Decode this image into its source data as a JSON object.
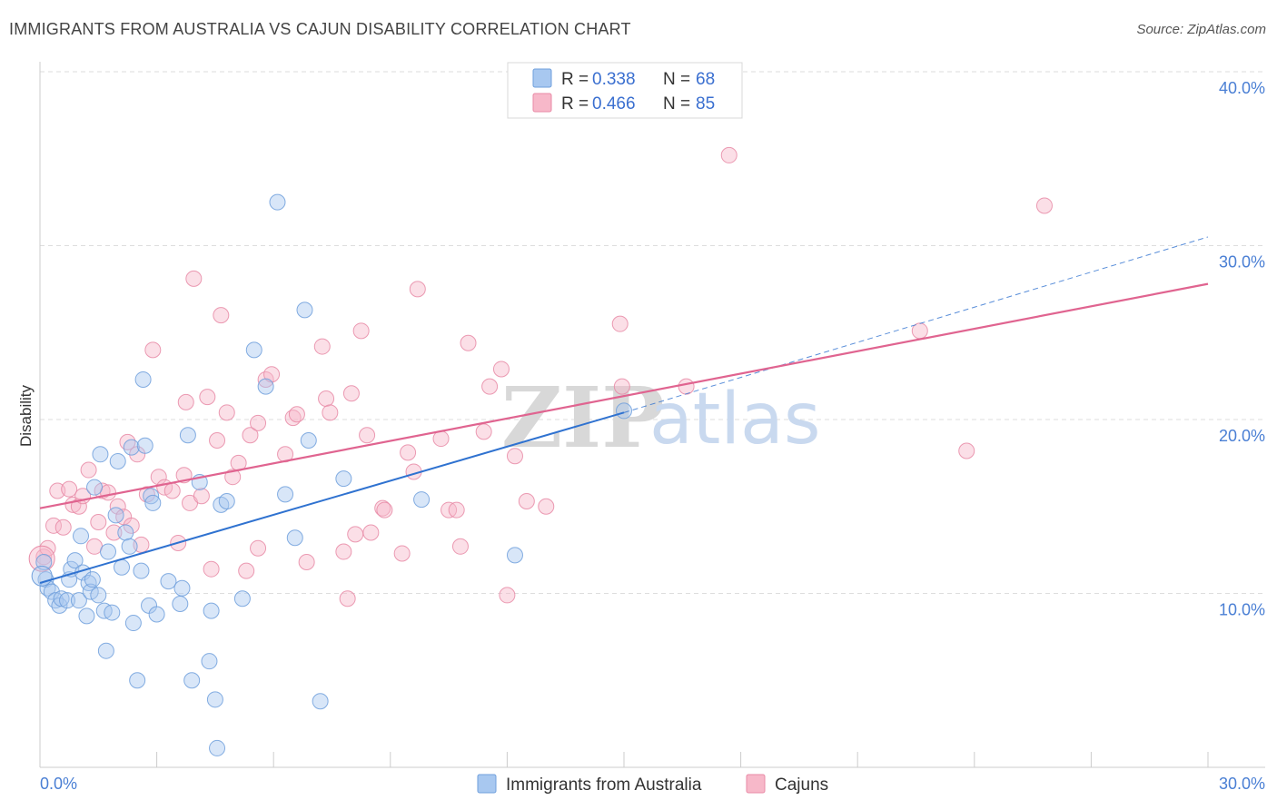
{
  "title": "IMMIGRANTS FROM AUSTRALIA VS CAJUN DISABILITY CORRELATION CHART",
  "source": "Source: ZipAtlas.com",
  "watermark": {
    "zip": "ZIP",
    "atlas": "atlas"
  },
  "colors": {
    "blue_fill": "#a8c8f0",
    "blue_stroke": "#6f9fdc",
    "blue_line": "#2f72d0",
    "pink_fill": "#f7b8c9",
    "pink_stroke": "#e88aa6",
    "pink_line": "#e06490",
    "grid": "#dddddd",
    "axis_text": "#4a7fd4"
  },
  "legend": {
    "rows": [
      {
        "r_label": "R =",
        "r_value": "0.338",
        "n_label": "N =",
        "n_value": "68"
      },
      {
        "r_label": "R =",
        "r_value": "0.466",
        "n_label": "N =",
        "n_value": "85"
      }
    ]
  },
  "bottom_legend": {
    "items": [
      {
        "label": "Immigrants from Australia"
      },
      {
        "label": "Cajuns"
      }
    ]
  },
  "chart_data": {
    "type": "scatter",
    "title": "IMMIGRANTS FROM AUSTRALIA VS CAJUN DISABILITY CORRELATION CHART",
    "xlabel": "",
    "ylabel": "Disability",
    "xlim": [
      0,
      30
    ],
    "ylim": [
      0,
      40
    ],
    "x_ticks": [
      "0.0%",
      "30.0%"
    ],
    "y_ticks": [
      {
        "value": 10,
        "label": "10.0%"
      },
      {
        "value": 20,
        "label": "20.0%"
      },
      {
        "value": 30,
        "label": "30.0%"
      },
      {
        "value": 40,
        "label": "40.0%"
      }
    ],
    "grid": true,
    "legend_position": "top-center",
    "series": [
      {
        "name": "Immigrants from Australia",
        "R": 0.338,
        "N": 68,
        "trend": {
          "x": [
            0,
            15
          ],
          "y": [
            10.6,
            20.4
          ]
        },
        "trend_extension": {
          "x": [
            15,
            30
          ],
          "y": [
            20.4,
            30.5
          ]
        },
        "points": [
          [
            0.1,
            11.8
          ],
          [
            0.15,
            10.8
          ],
          [
            0.2,
            10.3
          ],
          [
            0.3,
            10.1
          ],
          [
            0.4,
            9.6
          ],
          [
            0.5,
            9.3
          ],
          [
            0.55,
            9.7
          ],
          [
            0.7,
            9.6
          ],
          [
            0.75,
            10.8
          ],
          [
            0.8,
            11.4
          ],
          [
            0.9,
            11.9
          ],
          [
            1.0,
            9.6
          ],
          [
            1.05,
            13.3
          ],
          [
            1.1,
            11.2
          ],
          [
            1.2,
            8.7
          ],
          [
            1.25,
            10.6
          ],
          [
            1.3,
            10.1
          ],
          [
            1.35,
            10.8
          ],
          [
            1.4,
            16.1
          ],
          [
            1.5,
            9.9
          ],
          [
            1.55,
            18.0
          ],
          [
            1.65,
            9.0
          ],
          [
            1.7,
            6.7
          ],
          [
            1.75,
            12.4
          ],
          [
            1.85,
            8.9
          ],
          [
            1.95,
            14.5
          ],
          [
            2.0,
            17.6
          ],
          [
            2.1,
            11.5
          ],
          [
            2.2,
            13.5
          ],
          [
            2.3,
            12.7
          ],
          [
            2.35,
            18.4
          ],
          [
            2.4,
            8.3
          ],
          [
            2.5,
            5.0
          ],
          [
            2.6,
            11.3
          ],
          [
            2.65,
            22.3
          ],
          [
            2.7,
            18.5
          ],
          [
            2.8,
            9.3
          ],
          [
            2.85,
            15.6
          ],
          [
            2.9,
            15.2
          ],
          [
            3.0,
            8.8
          ],
          [
            3.3,
            10.7
          ],
          [
            3.6,
            9.4
          ],
          [
            3.65,
            10.3
          ],
          [
            3.8,
            19.1
          ],
          [
            3.9,
            5.0
          ],
          [
            4.1,
            16.4
          ],
          [
            4.35,
            6.1
          ],
          [
            4.4,
            9.0
          ],
          [
            4.5,
            3.9
          ],
          [
            4.55,
            1.1
          ],
          [
            4.65,
            15.1
          ],
          [
            4.8,
            15.3
          ],
          [
            5.2,
            9.7
          ],
          [
            5.5,
            24.0
          ],
          [
            5.8,
            21.9
          ],
          [
            6.1,
            32.5
          ],
          [
            6.3,
            15.7
          ],
          [
            6.55,
            13.2
          ],
          [
            6.8,
            26.3
          ],
          [
            6.9,
            18.8
          ],
          [
            7.2,
            3.8
          ],
          [
            7.8,
            16.6
          ],
          [
            9.8,
            15.4
          ],
          [
            12.2,
            12.2
          ],
          [
            15.0,
            20.5
          ]
        ]
      },
      {
        "name": "Cajuns",
        "R": 0.466,
        "N": 85,
        "trend": {
          "x": [
            0,
            30
          ],
          "y": [
            14.9,
            27.8
          ]
        },
        "points": [
          [
            0.1,
            12.1
          ],
          [
            0.2,
            12.6
          ],
          [
            0.35,
            13.9
          ],
          [
            0.45,
            15.9
          ],
          [
            0.6,
            13.8
          ],
          [
            0.75,
            16.0
          ],
          [
            0.85,
            15.1
          ],
          [
            1.0,
            15.0
          ],
          [
            1.1,
            15.6
          ],
          [
            1.25,
            17.1
          ],
          [
            1.4,
            12.7
          ],
          [
            1.5,
            14.1
          ],
          [
            1.6,
            15.9
          ],
          [
            1.75,
            15.8
          ],
          [
            1.9,
            13.5
          ],
          [
            2.0,
            15.0
          ],
          [
            2.15,
            14.4
          ],
          [
            2.25,
            18.7
          ],
          [
            2.35,
            13.9
          ],
          [
            2.5,
            18.0
          ],
          [
            2.6,
            12.8
          ],
          [
            2.75,
            15.7
          ],
          [
            2.9,
            24.0
          ],
          [
            3.05,
            16.7
          ],
          [
            3.2,
            16.1
          ],
          [
            3.4,
            15.9
          ],
          [
            3.55,
            12.9
          ],
          [
            3.7,
            16.8
          ],
          [
            3.75,
            21.0
          ],
          [
            3.85,
            15.2
          ],
          [
            3.95,
            28.1
          ],
          [
            4.15,
            15.6
          ],
          [
            4.3,
            21.3
          ],
          [
            4.4,
            11.4
          ],
          [
            4.55,
            18.8
          ],
          [
            4.65,
            26.0
          ],
          [
            4.8,
            20.4
          ],
          [
            4.95,
            16.7
          ],
          [
            5.1,
            17.5
          ],
          [
            5.3,
            11.3
          ],
          [
            5.4,
            19.1
          ],
          [
            5.6,
            12.6
          ],
          [
            5.6,
            19.8
          ],
          [
            5.8,
            22.3
          ],
          [
            5.95,
            22.6
          ],
          [
            6.3,
            18.0
          ],
          [
            6.5,
            20.1
          ],
          [
            6.6,
            20.3
          ],
          [
            6.85,
            11.8
          ],
          [
            7.25,
            24.2
          ],
          [
            7.35,
            21.2
          ],
          [
            7.45,
            20.4
          ],
          [
            7.8,
            12.4
          ],
          [
            7.9,
            9.7
          ],
          [
            8.0,
            21.5
          ],
          [
            8.1,
            13.4
          ],
          [
            8.25,
            25.1
          ],
          [
            8.4,
            19.1
          ],
          [
            8.5,
            13.5
          ],
          [
            8.8,
            14.9
          ],
          [
            8.85,
            14.8
          ],
          [
            9.3,
            12.3
          ],
          [
            9.45,
            18.1
          ],
          [
            9.6,
            17.0
          ],
          [
            9.7,
            27.5
          ],
          [
            10.3,
            18.9
          ],
          [
            10.5,
            14.8
          ],
          [
            10.7,
            14.8
          ],
          [
            10.8,
            12.7
          ],
          [
            11.0,
            24.4
          ],
          [
            11.4,
            19.3
          ],
          [
            11.55,
            21.9
          ],
          [
            11.85,
            22.9
          ],
          [
            12.0,
            9.9
          ],
          [
            12.2,
            17.9
          ],
          [
            12.5,
            15.3
          ],
          [
            13.0,
            15.0
          ],
          [
            14.9,
            25.5
          ],
          [
            14.95,
            21.9
          ],
          [
            16.6,
            21.9
          ],
          [
            17.7,
            35.2
          ],
          [
            22.6,
            25.1
          ],
          [
            23.8,
            18.2
          ],
          [
            25.8,
            32.3
          ]
        ]
      }
    ]
  }
}
